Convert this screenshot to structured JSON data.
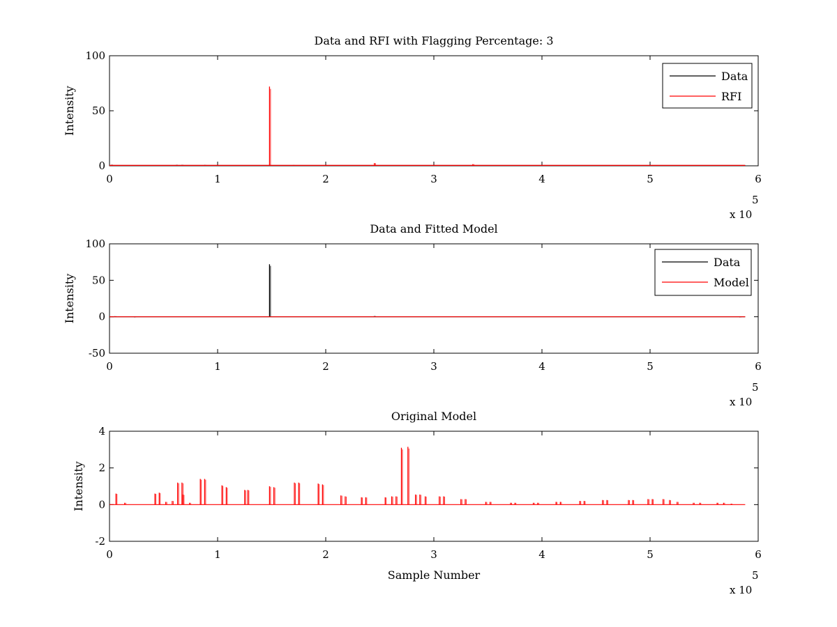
{
  "chart_data": [
    {
      "type": "line",
      "title": "Data and RFI with Flagging Percentage: 3",
      "xlabel": "",
      "ylabel": "Intensity",
      "xlim": [
        0,
        6
      ],
      "ylim": [
        0,
        100
      ],
      "xticks": [
        "0",
        "1",
        "2",
        "3",
        "4",
        "5",
        "6"
      ],
      "yticks": [
        "0",
        "50",
        "100"
      ],
      "x_exponent_label": "x 10",
      "x_exponent_power": "5",
      "legend": {
        "position": "top-right",
        "entries": [
          "Data",
          "RFI"
        ]
      },
      "series": [
        {
          "name": "Data",
          "color": "#000000",
          "baseline": 0.3,
          "points": [
            {
              "x": 0.02,
              "y": 1.0
            },
            {
              "x": 0.62,
              "y": 0.9
            },
            {
              "x": 0.67,
              "y": 0.9
            },
            {
              "x": 0.88,
              "y": 0.8
            },
            {
              "x": 1.7,
              "y": 0.7
            },
            {
              "x": 2.45,
              "y": 0.8
            },
            {
              "x": 3.36,
              "y": 0.7
            }
          ]
        },
        {
          "name": "RFI",
          "color": "#ff0000",
          "baseline": 0.4,
          "points": [
            {
              "x": 1.48,
              "y": 72
            },
            {
              "x": 2.45,
              "y": 2.5
            },
            {
              "x": 3.36,
              "y": 1.5
            }
          ]
        }
      ]
    },
    {
      "type": "line",
      "title": "Data and Fitted Model",
      "xlabel": "",
      "ylabel": "Intensity",
      "xlim": [
        0,
        6
      ],
      "ylim": [
        -50,
        100
      ],
      "xticks": [
        "0",
        "1",
        "2",
        "3",
        "4",
        "5",
        "6"
      ],
      "yticks": [
        "-50",
        "0",
        "50",
        "100"
      ],
      "x_exponent_label": "x 10",
      "x_exponent_power": "5",
      "legend": {
        "position": "top-right",
        "entries": [
          "Data",
          "Model"
        ]
      },
      "series": [
        {
          "name": "Data",
          "color": "#000000",
          "baseline": 0.0,
          "points": [
            {
              "x": 0.05,
              "y": 0.8
            },
            {
              "x": 0.23,
              "y": -0.8
            },
            {
              "x": 1.48,
              "y": 72
            },
            {
              "x": 2.45,
              "y": 1.0
            },
            {
              "x": 5.83,
              "y": -0.8
            }
          ]
        },
        {
          "name": "Model",
          "color": "#ff0000",
          "baseline": 0.0,
          "points": []
        }
      ]
    },
    {
      "type": "line",
      "title": "Original Model",
      "xlabel": "Sample Number",
      "ylabel": "Intensity",
      "xlim": [
        0,
        6
      ],
      "ylim": [
        -2,
        4
      ],
      "xticks": [
        "0",
        "1",
        "2",
        "3",
        "4",
        "5",
        "6"
      ],
      "yticks": [
        "-2",
        "0",
        "2",
        "4"
      ],
      "x_exponent_label": "x 10",
      "x_exponent_power": "5",
      "legend": null,
      "series": [
        {
          "color": "#ff0000",
          "baseline": 0.0,
          "points": [
            {
              "x": 0.06,
              "y": 0.6
            },
            {
              "x": 0.14,
              "y": 0.1
            },
            {
              "x": 0.42,
              "y": 0.6
            },
            {
              "x": 0.46,
              "y": 0.65
            },
            {
              "x": 0.52,
              "y": 0.15
            },
            {
              "x": 0.58,
              "y": 0.2
            },
            {
              "x": 0.63,
              "y": 1.2
            },
            {
              "x": 0.67,
              "y": 1.2
            },
            {
              "x": 0.68,
              "y": 0.55
            },
            {
              "x": 0.74,
              "y": 0.1
            },
            {
              "x": 0.84,
              "y": 1.4
            },
            {
              "x": 0.88,
              "y": 1.4
            },
            {
              "x": 1.04,
              "y": 1.05
            },
            {
              "x": 1.08,
              "y": 0.95
            },
            {
              "x": 1.25,
              "y": 0.8
            },
            {
              "x": 1.28,
              "y": 0.8
            },
            {
              "x": 1.48,
              "y": 1.0
            },
            {
              "x": 1.52,
              "y": 0.95
            },
            {
              "x": 1.71,
              "y": 1.2
            },
            {
              "x": 1.75,
              "y": 1.2
            },
            {
              "x": 1.93,
              "y": 1.15
            },
            {
              "x": 1.97,
              "y": 1.1
            },
            {
              "x": 2.14,
              "y": 0.5
            },
            {
              "x": 2.18,
              "y": 0.45
            },
            {
              "x": 2.33,
              "y": 0.4
            },
            {
              "x": 2.37,
              "y": 0.4
            },
            {
              "x": 2.55,
              "y": 0.4
            },
            {
              "x": 2.61,
              "y": 0.45
            },
            {
              "x": 2.65,
              "y": 0.45
            },
            {
              "x": 2.7,
              "y": 3.1
            },
            {
              "x": 2.76,
              "y": 3.15
            },
            {
              "x": 2.83,
              "y": 0.55
            },
            {
              "x": 2.87,
              "y": 0.55
            },
            {
              "x": 2.92,
              "y": 0.45
            },
            {
              "x": 3.05,
              "y": 0.45
            },
            {
              "x": 3.09,
              "y": 0.45
            },
            {
              "x": 3.25,
              "y": 0.3
            },
            {
              "x": 3.29,
              "y": 0.3
            },
            {
              "x": 3.48,
              "y": 0.15
            },
            {
              "x": 3.52,
              "y": 0.15
            },
            {
              "x": 3.71,
              "y": 0.1
            },
            {
              "x": 3.75,
              "y": 0.1
            },
            {
              "x": 3.92,
              "y": 0.1
            },
            {
              "x": 3.96,
              "y": 0.1
            },
            {
              "x": 4.13,
              "y": 0.15
            },
            {
              "x": 4.17,
              "y": 0.15
            },
            {
              "x": 4.35,
              "y": 0.2
            },
            {
              "x": 4.39,
              "y": 0.2
            },
            {
              "x": 4.56,
              "y": 0.25
            },
            {
              "x": 4.6,
              "y": 0.25
            },
            {
              "x": 4.8,
              "y": 0.25
            },
            {
              "x": 4.84,
              "y": 0.25
            },
            {
              "x": 4.98,
              "y": 0.3
            },
            {
              "x": 5.02,
              "y": 0.3
            },
            {
              "x": 5.12,
              "y": 0.3
            },
            {
              "x": 5.18,
              "y": 0.25
            },
            {
              "x": 5.25,
              "y": 0.15
            },
            {
              "x": 5.4,
              "y": 0.1
            },
            {
              "x": 5.46,
              "y": 0.1
            },
            {
              "x": 5.62,
              "y": 0.1
            },
            {
              "x": 5.68,
              "y": 0.1
            },
            {
              "x": 5.75,
              "y": 0.05
            }
          ]
        }
      ]
    }
  ]
}
